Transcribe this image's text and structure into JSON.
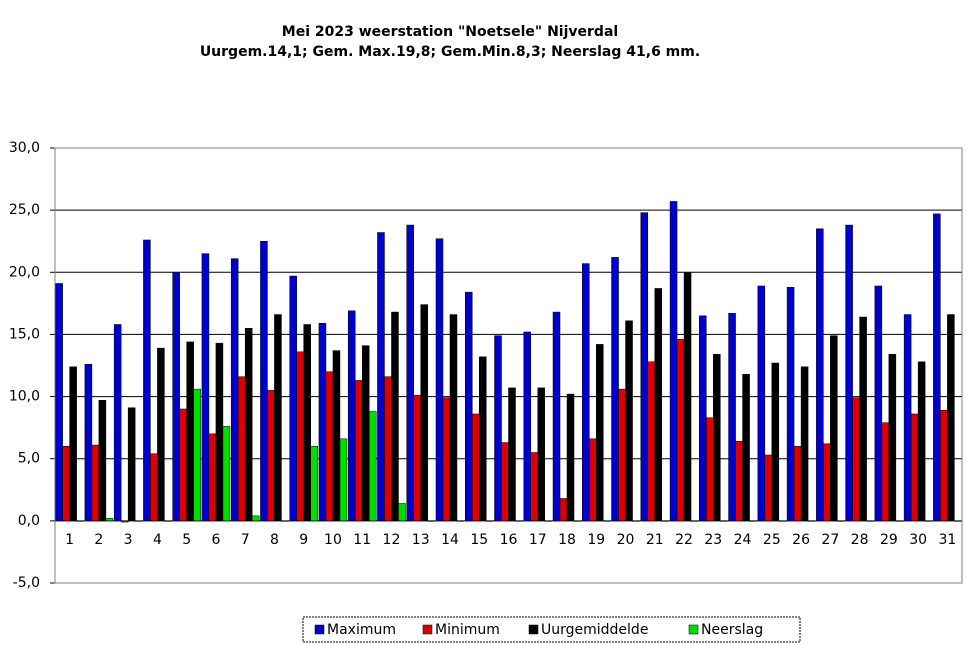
{
  "chart_data": {
    "type": "bar",
    "title": "Mei 2023 weerstation \"Noetsele\" Nijverdal",
    "subtitle": "Uurgem.14,1; Gem. Max.19,8; Gem.Min.8,3;  Neerslag 41,6 mm.",
    "categories": [
      "1",
      "2",
      "3",
      "4",
      "5",
      "6",
      "7",
      "8",
      "9",
      "10",
      "11",
      "12",
      "13",
      "14",
      "15",
      "16",
      "17",
      "18",
      "19",
      "20",
      "21",
      "22",
      "23",
      "24",
      "25",
      "26",
      "27",
      "28",
      "29",
      "30",
      "31"
    ],
    "series": [
      {
        "name": "Maximum",
        "color": "#0000cc",
        "values": [
          19.1,
          12.6,
          15.8,
          22.6,
          20.0,
          21.5,
          21.1,
          22.5,
          19.7,
          15.9,
          16.9,
          23.2,
          23.8,
          22.7,
          18.4,
          14.9,
          15.2,
          16.8,
          20.7,
          21.2,
          24.8,
          25.7,
          16.5,
          16.7,
          18.9,
          18.8,
          23.5,
          23.8,
          18.9,
          16.6,
          24.7
        ]
      },
      {
        "name": "Minimum",
        "color": "#dd0000",
        "values": [
          6.0,
          6.1,
          -0.1,
          5.4,
          9.0,
          7.0,
          11.6,
          10.5,
          13.6,
          12.0,
          11.3,
          11.6,
          10.1,
          9.9,
          8.6,
          6.3,
          5.5,
          1.8,
          6.6,
          10.6,
          12.8,
          14.6,
          8.3,
          6.4,
          5.3,
          6.0,
          6.2,
          9.9,
          7.9,
          8.6,
          8.9
        ]
      },
      {
        "name": "Uurgemiddelde",
        "color": "#000000",
        "values": [
          12.4,
          9.7,
          9.1,
          13.9,
          14.4,
          14.3,
          15.5,
          16.6,
          15.8,
          13.7,
          14.1,
          16.8,
          17.4,
          16.6,
          13.2,
          10.7,
          10.7,
          10.2,
          14.2,
          16.1,
          18.7,
          20.0,
          13.4,
          11.8,
          12.7,
          12.4,
          14.9,
          16.4,
          13.4,
          12.8,
          16.6
        ]
      },
      {
        "name": "Neerslag",
        "color": "#00dd00",
        "values": [
          0,
          0.2,
          0,
          0,
          10.6,
          7.6,
          0.4,
          0,
          6.0,
          6.6,
          8.8,
          1.4,
          0,
          0,
          0,
          0,
          0,
          0,
          0,
          0,
          0,
          0,
          0,
          0,
          0,
          0,
          0,
          0,
          0,
          0,
          0
        ]
      }
    ],
    "ylim": [
      -5,
      30
    ],
    "yticks": [
      {
        "value": -5,
        "label": "-5,0"
      },
      {
        "value": 0,
        "label": "0,0"
      },
      {
        "value": 5,
        "label": "5,0"
      },
      {
        "value": 10,
        "label": "10,0"
      },
      {
        "value": 15,
        "label": "15,0"
      },
      {
        "value": 20,
        "label": "20,0"
      },
      {
        "value": 25,
        "label": "25,0"
      },
      {
        "value": 30,
        "label": "30,0"
      }
    ],
    "grid": true
  }
}
